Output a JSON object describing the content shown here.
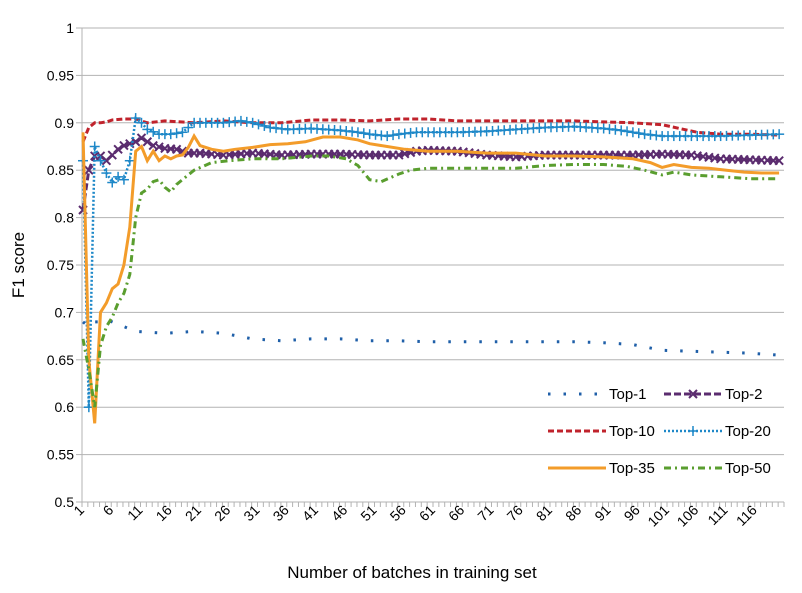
{
  "chart_data": {
    "type": "line",
    "xlabel": "Number of batches in training set",
    "ylabel": "F1 score",
    "ylim": [
      0.5,
      1
    ],
    "yticks": [
      0.5,
      0.55,
      0.6,
      0.65,
      0.7,
      0.75,
      0.8,
      0.85,
      0.9,
      0.95,
      1
    ],
    "ytick_labels": [
      "0.5",
      "0.55",
      "0.6",
      "0.65",
      "0.7",
      "0.75",
      "0.8",
      "0.85",
      "0.9",
      "0.95",
      "1"
    ],
    "xlim": [
      1,
      120
    ],
    "xtick_labels": [
      "1",
      "6",
      "11",
      "16",
      "21",
      "26",
      "31",
      "36",
      "41",
      "46",
      "51",
      "56",
      "61",
      "66",
      "71",
      "76",
      "81",
      "86",
      "91",
      "96",
      "101",
      "106",
      "111",
      "116"
    ],
    "grid": "horizontal",
    "legend_position": "bottom-right",
    "series": [
      {
        "name": "Top-1",
        "color": "#1f5fa8",
        "style": "dotted-sparse",
        "points": [
          [
            1,
            0.69
          ],
          [
            2,
            0.685
          ],
          [
            3,
            0.69
          ],
          [
            4,
            0.69
          ],
          [
            5,
            0.692
          ],
          [
            6,
            0.69
          ],
          [
            8,
            0.685
          ],
          [
            10,
            0.68
          ],
          [
            15,
            0.678
          ],
          [
            20,
            0.68
          ],
          [
            25,
            0.678
          ],
          [
            30,
            0.672
          ],
          [
            35,
            0.67
          ],
          [
            40,
            0.672
          ],
          [
            45,
            0.672
          ],
          [
            50,
            0.67
          ],
          [
            55,
            0.67
          ],
          [
            60,
            0.669
          ],
          [
            65,
            0.669
          ],
          [
            70,
            0.669
          ],
          [
            75,
            0.669
          ],
          [
            80,
            0.669
          ],
          [
            85,
            0.669
          ],
          [
            90,
            0.668
          ],
          [
            95,
            0.666
          ],
          [
            100,
            0.66
          ],
          [
            105,
            0.659
          ],
          [
            110,
            0.658
          ],
          [
            115,
            0.657
          ],
          [
            120,
            0.655
          ]
        ]
      },
      {
        "name": "Top-2",
        "color": "#5b2c6f",
        "style": "dashed-x",
        "points": [
          [
            1,
            0.808
          ],
          [
            2,
            0.85
          ],
          [
            3,
            0.865
          ],
          [
            4,
            0.865
          ],
          [
            5,
            0.86
          ],
          [
            6,
            0.866
          ],
          [
            7,
            0.872
          ],
          [
            8,
            0.876
          ],
          [
            9,
            0.878
          ],
          [
            10,
            0.88
          ],
          [
            11,
            0.884
          ],
          [
            12,
            0.88
          ],
          [
            13,
            0.876
          ],
          [
            15,
            0.873
          ],
          [
            17,
            0.872
          ],
          [
            19,
            0.868
          ],
          [
            21,
            0.868
          ],
          [
            25,
            0.866
          ],
          [
            30,
            0.868
          ],
          [
            35,
            0.866
          ],
          [
            40,
            0.867
          ],
          [
            45,
            0.867
          ],
          [
            50,
            0.866
          ],
          [
            55,
            0.866
          ],
          [
            58,
            0.87
          ],
          [
            60,
            0.871
          ],
          [
            65,
            0.87
          ],
          [
            70,
            0.866
          ],
          [
            75,
            0.864
          ],
          [
            80,
            0.866
          ],
          [
            85,
            0.866
          ],
          [
            90,
            0.866
          ],
          [
            95,
            0.866
          ],
          [
            100,
            0.867
          ],
          [
            105,
            0.866
          ],
          [
            110,
            0.862
          ],
          [
            115,
            0.861
          ],
          [
            120,
            0.86
          ]
        ]
      },
      {
        "name": "Top-10",
        "color": "#c0232c",
        "style": "dashed",
        "points": [
          [
            1,
            0.88
          ],
          [
            2,
            0.895
          ],
          [
            3,
            0.9
          ],
          [
            4,
            0.9
          ],
          [
            5,
            0.901
          ],
          [
            6,
            0.903
          ],
          [
            8,
            0.904
          ],
          [
            10,
            0.904
          ],
          [
            12,
            0.9
          ],
          [
            15,
            0.902
          ],
          [
            20,
            0.9
          ],
          [
            25,
            0.902
          ],
          [
            30,
            0.9
          ],
          [
            35,
            0.9
          ],
          [
            40,
            0.903
          ],
          [
            45,
            0.903
          ],
          [
            50,
            0.902
          ],
          [
            55,
            0.904
          ],
          [
            60,
            0.904
          ],
          [
            65,
            0.902
          ],
          [
            70,
            0.902
          ],
          [
            75,
            0.902
          ],
          [
            80,
            0.902
          ],
          [
            85,
            0.902
          ],
          [
            90,
            0.901
          ],
          [
            95,
            0.9
          ],
          [
            100,
            0.898
          ],
          [
            103,
            0.894
          ],
          [
            106,
            0.89
          ],
          [
            110,
            0.888
          ],
          [
            115,
            0.888
          ],
          [
            120,
            0.887
          ]
        ]
      },
      {
        "name": "Top-20",
        "color": "#1e88c8",
        "style": "dotted-plus",
        "points": [
          [
            1,
            0.86
          ],
          [
            2,
            0.6
          ],
          [
            3,
            0.875
          ],
          [
            4,
            0.86
          ],
          [
            5,
            0.847
          ],
          [
            6,
            0.837
          ],
          [
            7,
            0.843
          ],
          [
            8,
            0.84
          ],
          [
            9,
            0.86
          ],
          [
            10,
            0.905
          ],
          [
            11,
            0.9
          ],
          [
            12,
            0.893
          ],
          [
            14,
            0.888
          ],
          [
            16,
            0.888
          ],
          [
            18,
            0.89
          ],
          [
            20,
            0.9
          ],
          [
            22,
            0.9
          ],
          [
            25,
            0.9
          ],
          [
            28,
            0.902
          ],
          [
            30,
            0.9
          ],
          [
            33,
            0.895
          ],
          [
            36,
            0.893
          ],
          [
            40,
            0.894
          ],
          [
            45,
            0.892
          ],
          [
            48,
            0.89
          ],
          [
            50,
            0.888
          ],
          [
            53,
            0.886
          ],
          [
            55,
            0.888
          ],
          [
            58,
            0.89
          ],
          [
            60,
            0.89
          ],
          [
            65,
            0.89
          ],
          [
            70,
            0.891
          ],
          [
            75,
            0.893
          ],
          [
            80,
            0.895
          ],
          [
            85,
            0.896
          ],
          [
            90,
            0.894
          ],
          [
            93,
            0.892
          ],
          [
            95,
            0.89
          ],
          [
            97,
            0.888
          ],
          [
            100,
            0.886
          ],
          [
            103,
            0.886
          ],
          [
            106,
            0.886
          ],
          [
            110,
            0.886
          ],
          [
            115,
            0.887
          ],
          [
            120,
            0.888
          ]
        ]
      },
      {
        "name": "Top-35",
        "color": "#f39c2a",
        "style": "solid",
        "points": [
          [
            1,
            0.89
          ],
          [
            2,
            0.65
          ],
          [
            3,
            0.583
          ],
          [
            4,
            0.7
          ],
          [
            5,
            0.71
          ],
          [
            6,
            0.725
          ],
          [
            7,
            0.73
          ],
          [
            8,
            0.75
          ],
          [
            9,
            0.79
          ],
          [
            10,
            0.87
          ],
          [
            11,
            0.875
          ],
          [
            12,
            0.86
          ],
          [
            13,
            0.87
          ],
          [
            14,
            0.86
          ],
          [
            15,
            0.865
          ],
          [
            16,
            0.862
          ],
          [
            17,
            0.865
          ],
          [
            18,
            0.866
          ],
          [
            19,
            0.874
          ],
          [
            20,
            0.886
          ],
          [
            21,
            0.876
          ],
          [
            23,
            0.872
          ],
          [
            25,
            0.87
          ],
          [
            27,
            0.872
          ],
          [
            30,
            0.874
          ],
          [
            33,
            0.877
          ],
          [
            36,
            0.878
          ],
          [
            39,
            0.88
          ],
          [
            42,
            0.885
          ],
          [
            45,
            0.885
          ],
          [
            48,
            0.882
          ],
          [
            50,
            0.878
          ],
          [
            53,
            0.875
          ],
          [
            56,
            0.872
          ],
          [
            60,
            0.87
          ],
          [
            65,
            0.87
          ],
          [
            70,
            0.868
          ],
          [
            75,
            0.868
          ],
          [
            80,
            0.865
          ],
          [
            85,
            0.865
          ],
          [
            90,
            0.864
          ],
          [
            95,
            0.862
          ],
          [
            98,
            0.858
          ],
          [
            100,
            0.853
          ],
          [
            102,
            0.856
          ],
          [
            105,
            0.853
          ],
          [
            108,
            0.852
          ],
          [
            111,
            0.85
          ],
          [
            114,
            0.848
          ],
          [
            117,
            0.847
          ],
          [
            120,
            0.847
          ]
        ]
      },
      {
        "name": "Top-50",
        "color": "#5a9e2f",
        "style": "dash-dot",
        "points": [
          [
            1,
            0.672
          ],
          [
            2,
            0.64
          ],
          [
            3,
            0.6
          ],
          [
            4,
            0.665
          ],
          [
            5,
            0.685
          ],
          [
            6,
            0.695
          ],
          [
            7,
            0.71
          ],
          [
            8,
            0.72
          ],
          [
            9,
            0.74
          ],
          [
            10,
            0.8
          ],
          [
            11,
            0.826
          ],
          [
            12,
            0.83
          ],
          [
            13,
            0.838
          ],
          [
            14,
            0.84
          ],
          [
            15,
            0.832
          ],
          [
            16,
            0.827
          ],
          [
            17,
            0.835
          ],
          [
            18,
            0.84
          ],
          [
            20,
            0.85
          ],
          [
            23,
            0.858
          ],
          [
            26,
            0.86
          ],
          [
            30,
            0.862
          ],
          [
            35,
            0.862
          ],
          [
            40,
            0.865
          ],
          [
            43,
            0.865
          ],
          [
            46,
            0.862
          ],
          [
            48,
            0.855
          ],
          [
            50,
            0.84
          ],
          [
            52,
            0.838
          ],
          [
            55,
            0.846
          ],
          [
            57,
            0.85
          ],
          [
            60,
            0.852
          ],
          [
            65,
            0.852
          ],
          [
            70,
            0.852
          ],
          [
            75,
            0.852
          ],
          [
            80,
            0.855
          ],
          [
            85,
            0.856
          ],
          [
            90,
            0.856
          ],
          [
            94,
            0.854
          ],
          [
            97,
            0.85
          ],
          [
            100,
            0.845
          ],
          [
            102,
            0.848
          ],
          [
            105,
            0.845
          ],
          [
            110,
            0.843
          ],
          [
            115,
            0.841
          ],
          [
            120,
            0.841
          ]
        ]
      }
    ]
  }
}
